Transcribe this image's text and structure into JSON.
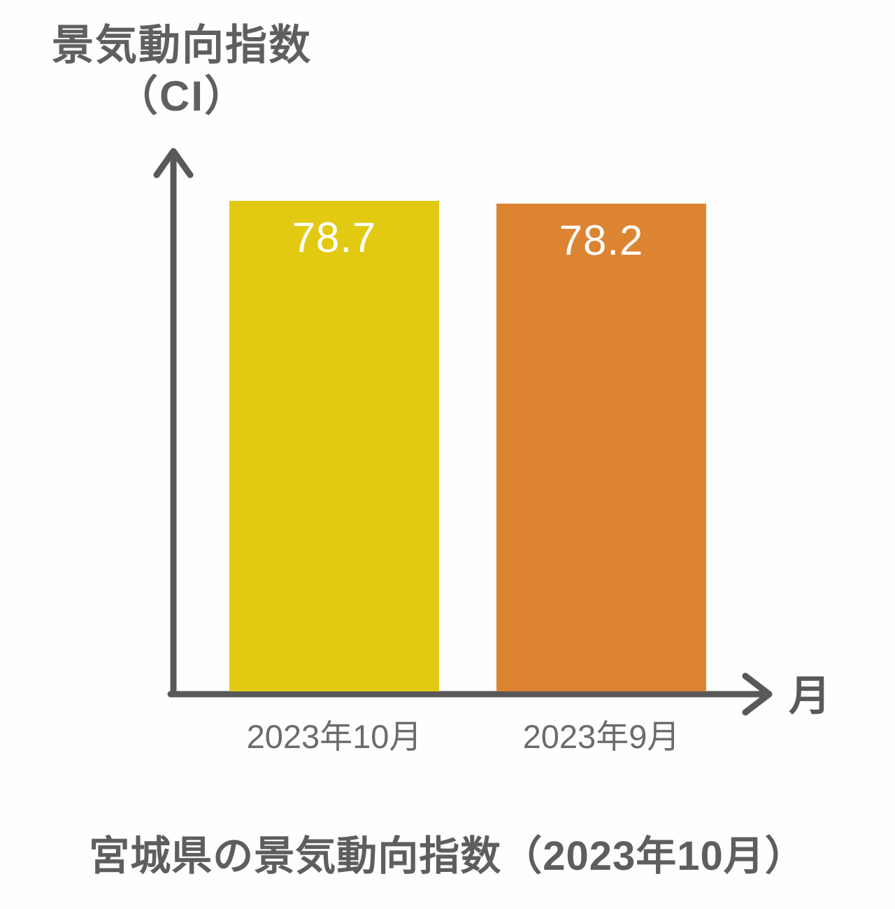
{
  "chart_data": {
    "type": "bar",
    "categories": [
      "2023年10月",
      "2023年9月"
    ],
    "values": [
      78.7,
      78.2
    ],
    "value_labels": [
      "78.7",
      "78.2"
    ],
    "bar_colors": [
      "#e2ca12",
      "#dc8432"
    ],
    "title": "宮城県の景気動向指数（2023年10月）",
    "ylabel": "景気動向指数（CI）",
    "xlabel": "月",
    "ylim": [
      0,
      78.7
    ],
    "grid": false,
    "legend": "none"
  },
  "labels": {
    "y_axis_title_line1": "景気動向指数",
    "y_axis_title_line2": "（CI）",
    "x_axis_unit": "月",
    "caption": "宮城県の景気動向指数（2023年10月）"
  },
  "bars": [
    {
      "category": "2023年10月",
      "value_label": "78.7",
      "color": "#e2ca12"
    },
    {
      "category": "2023年9月",
      "value_label": "78.2",
      "color": "#dc8432"
    }
  ],
  "colors": {
    "axis": "#595959",
    "value_text": "#ffffff",
    "background": "#fefefe"
  }
}
